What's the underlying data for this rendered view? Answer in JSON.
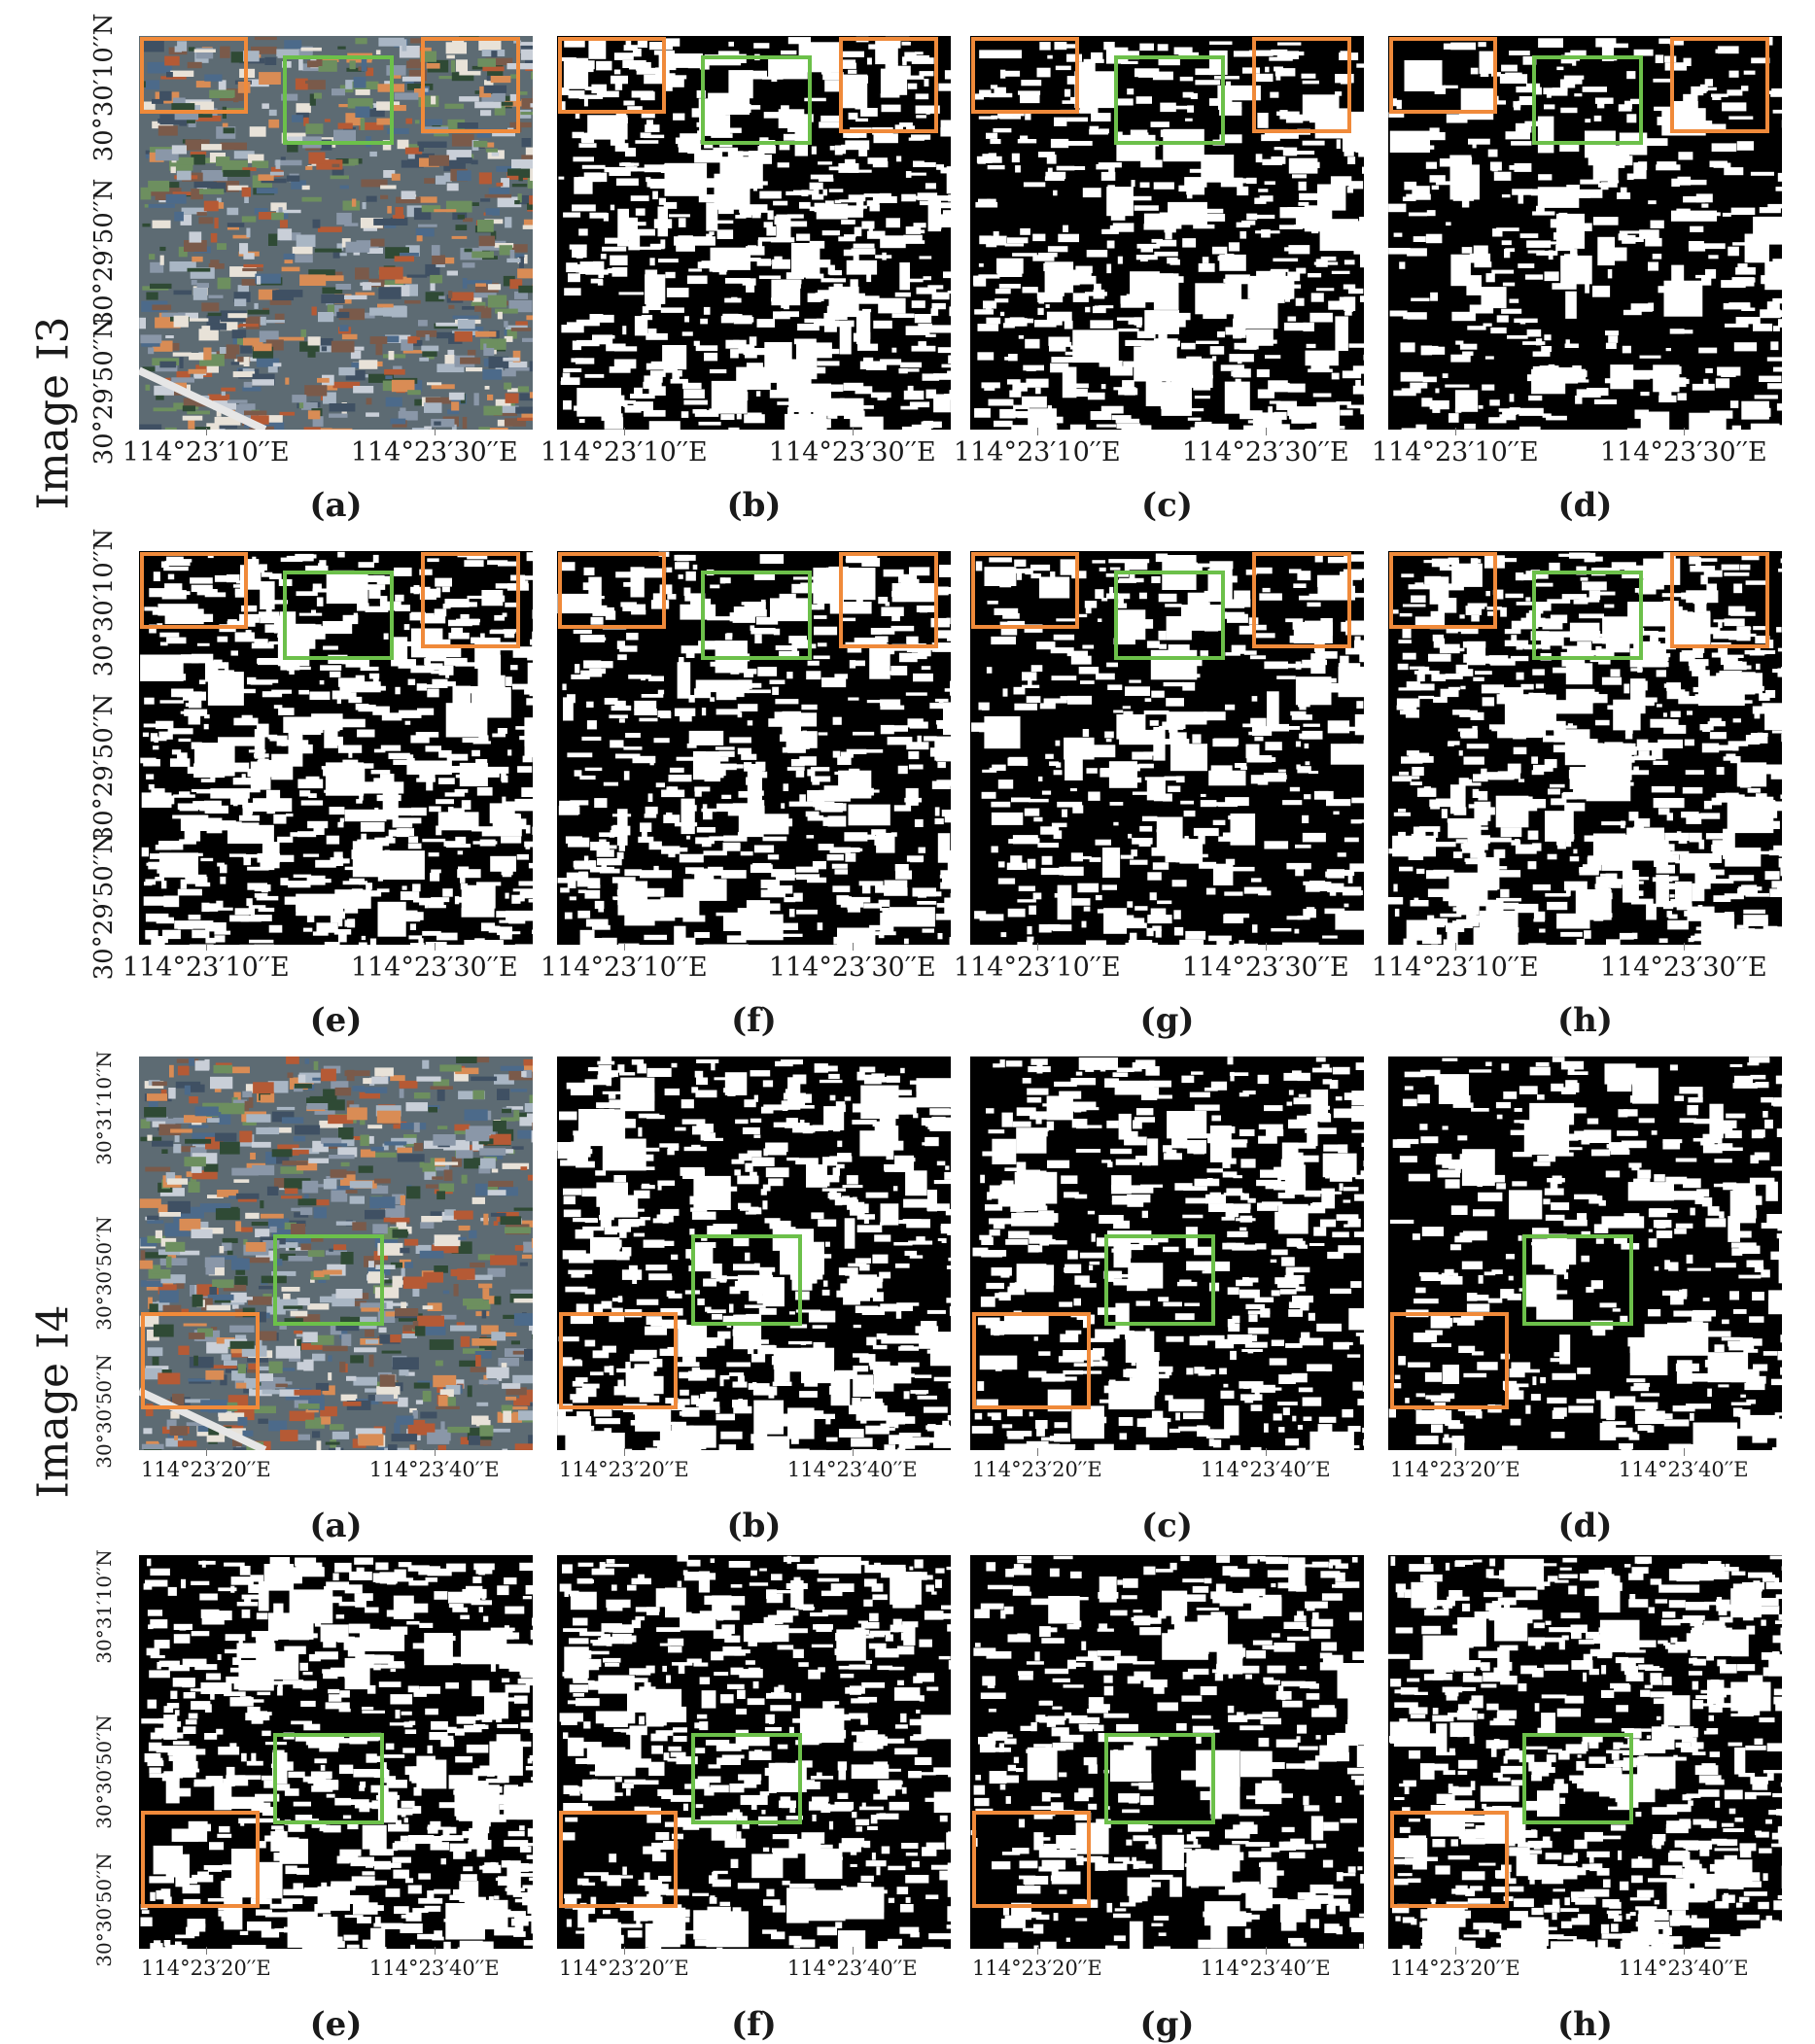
{
  "groups": [
    {
      "label": "Image I3",
      "lat_labels": [
        "30°30′10′′N",
        "30°29′50′′N",
        "30°29′50′′N"
      ],
      "lon_labels": [
        "114°23′10′′E",
        "114°23′30′′E"
      ],
      "captions": [
        "(a)",
        "(b)",
        "(c)",
        "(d)",
        "(e)",
        "(f)",
        "(g)",
        "(h)"
      ]
    },
    {
      "label": "Image I4",
      "lat_labels": [
        "30°31′10′′N",
        "30°30′50′′N",
        "30°30′50′′N"
      ],
      "lon_labels": [
        "114°23′20′′E",
        "114°23′40′′E"
      ],
      "captions": [
        "(a)",
        "(b)",
        "(c)",
        "(d)",
        "(e)",
        "(f)",
        "(g)",
        "(h)"
      ]
    }
  ],
  "colors": {
    "orange_box": "#f08a3a",
    "green_box": "#6cc04a",
    "background": "#000000",
    "foreground": "#ffffff"
  }
}
